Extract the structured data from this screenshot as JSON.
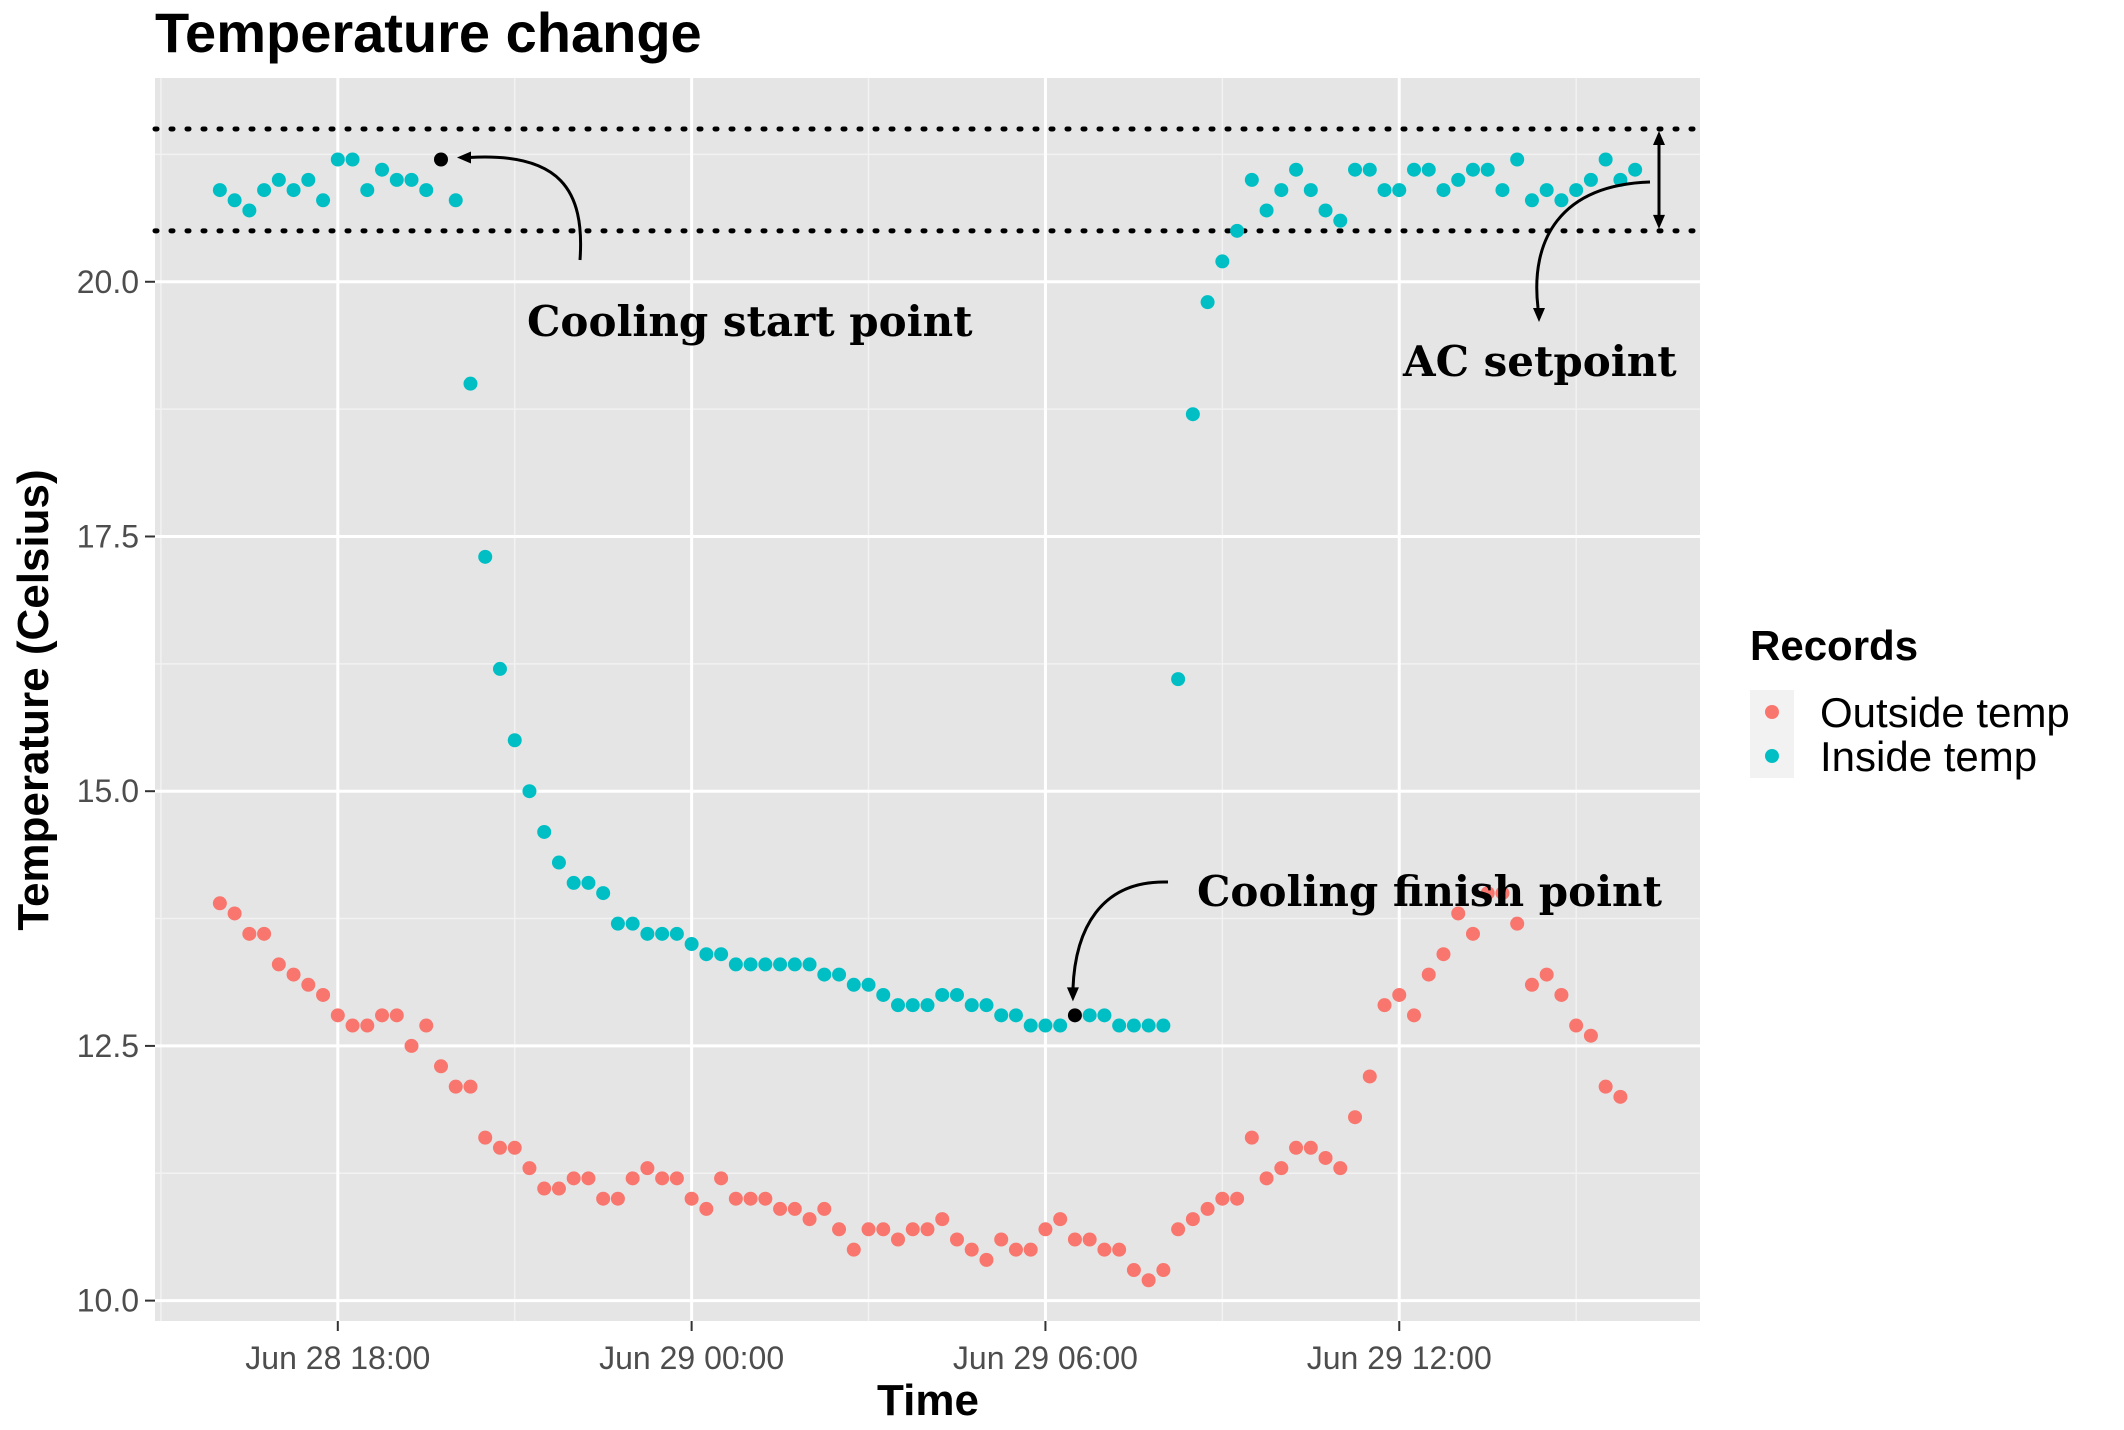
{
  "chart_data": {
    "type": "scatter",
    "title": "Temperature change",
    "xlabel": "Time",
    "ylabel": "Temperature (Celsius)",
    "x_ticks": [
      "Jun 28 18:00",
      "Jun 29 00:00",
      "Jun 29 06:00",
      "Jun 29 12:00"
    ],
    "x_tick_hours": [
      0,
      6,
      12,
      18
    ],
    "x_unit": "hours after Jun 28 18:00",
    "xlim": [
      -3.1,
      23.1
    ],
    "y_ticks": [
      "10.0",
      "12.5",
      "15.0",
      "17.5",
      "20.0"
    ],
    "y_tick_values": [
      10.0,
      12.5,
      15.0,
      17.5,
      20.0
    ],
    "ylim": [
      9.8,
      22.0
    ],
    "grid": true,
    "legend": {
      "title": "Records",
      "position": "right"
    },
    "series": [
      {
        "name": "Outside temp",
        "color": "#f8766d",
        "points": [
          [
            -2.0,
            13.9
          ],
          [
            -1.75,
            13.8
          ],
          [
            -1.5,
            13.6
          ],
          [
            -1.25,
            13.6
          ],
          [
            -1.0,
            13.3
          ],
          [
            -0.75,
            13.2
          ],
          [
            -0.5,
            13.1
          ],
          [
            -0.25,
            13.0
          ],
          [
            0.0,
            12.8
          ],
          [
            0.25,
            12.7
          ],
          [
            0.5,
            12.7
          ],
          [
            0.75,
            12.8
          ],
          [
            1.0,
            12.8
          ],
          [
            1.25,
            12.5
          ],
          [
            1.5,
            12.7
          ],
          [
            1.75,
            12.3
          ],
          [
            2.0,
            12.1
          ],
          [
            2.25,
            12.1
          ],
          [
            2.5,
            11.6
          ],
          [
            2.75,
            11.5
          ],
          [
            3.0,
            11.5
          ],
          [
            3.25,
            11.3
          ],
          [
            3.5,
            11.1
          ],
          [
            3.75,
            11.1
          ],
          [
            4.0,
            11.2
          ],
          [
            4.25,
            11.2
          ],
          [
            4.5,
            11.0
          ],
          [
            4.75,
            11.0
          ],
          [
            5.0,
            11.2
          ],
          [
            5.25,
            11.3
          ],
          [
            5.5,
            11.2
          ],
          [
            5.75,
            11.2
          ],
          [
            6.0,
            11.0
          ],
          [
            6.25,
            10.9
          ],
          [
            6.5,
            11.2
          ],
          [
            6.75,
            11.0
          ],
          [
            7.0,
            11.0
          ],
          [
            7.25,
            11.0
          ],
          [
            7.5,
            10.9
          ],
          [
            7.75,
            10.9
          ],
          [
            8.0,
            10.8
          ],
          [
            8.25,
            10.9
          ],
          [
            8.5,
            10.7
          ],
          [
            8.75,
            10.5
          ],
          [
            9.0,
            10.7
          ],
          [
            9.25,
            10.7
          ],
          [
            9.5,
            10.6
          ],
          [
            9.75,
            10.7
          ],
          [
            10.0,
            10.7
          ],
          [
            10.25,
            10.8
          ],
          [
            10.5,
            10.6
          ],
          [
            10.75,
            10.5
          ],
          [
            11.0,
            10.4
          ],
          [
            11.25,
            10.6
          ],
          [
            11.5,
            10.5
          ],
          [
            11.75,
            10.5
          ],
          [
            12.0,
            10.7
          ],
          [
            12.25,
            10.8
          ],
          [
            12.5,
            10.6
          ],
          [
            12.75,
            10.6
          ],
          [
            13.0,
            10.5
          ],
          [
            13.25,
            10.5
          ],
          [
            13.5,
            10.3
          ],
          [
            13.75,
            10.2
          ],
          [
            14.0,
            10.3
          ],
          [
            14.25,
            10.7
          ],
          [
            14.5,
            10.8
          ],
          [
            14.75,
            10.9
          ],
          [
            15.0,
            11.0
          ],
          [
            15.25,
            11.0
          ],
          [
            15.5,
            11.6
          ],
          [
            15.75,
            11.2
          ],
          [
            16.0,
            11.3
          ],
          [
            16.25,
            11.5
          ],
          [
            16.5,
            11.5
          ],
          [
            16.75,
            11.4
          ],
          [
            17.0,
            11.3
          ],
          [
            17.25,
            11.8
          ],
          [
            17.5,
            12.2
          ],
          [
            17.75,
            12.9
          ],
          [
            18.0,
            13.0
          ],
          [
            18.25,
            12.8
          ],
          [
            18.5,
            13.2
          ],
          [
            18.75,
            13.4
          ],
          [
            19.0,
            13.8
          ],
          [
            19.25,
            13.6
          ],
          [
            19.5,
            14.0
          ],
          [
            19.75,
            14.0
          ],
          [
            20.0,
            13.7
          ],
          [
            20.25,
            13.1
          ],
          [
            20.5,
            13.2
          ],
          [
            20.75,
            13.0
          ],
          [
            21.0,
            12.7
          ],
          [
            21.25,
            12.6
          ],
          [
            21.5,
            12.1
          ],
          [
            21.75,
            12.0
          ]
        ]
      },
      {
        "name": "Inside temp",
        "color": "#00bfc4",
        "points": [
          [
            -2.0,
            20.9
          ],
          [
            -1.75,
            20.8
          ],
          [
            -1.5,
            20.7
          ],
          [
            -1.25,
            20.9
          ],
          [
            -1.0,
            21.0
          ],
          [
            -0.75,
            20.9
          ],
          [
            -0.5,
            21.0
          ],
          [
            -0.25,
            20.8
          ],
          [
            0.0,
            21.2
          ],
          [
            0.25,
            21.2
          ],
          [
            0.5,
            20.9
          ],
          [
            0.75,
            21.1
          ],
          [
            1.0,
            21.0
          ],
          [
            1.25,
            21.0
          ],
          [
            1.5,
            20.9
          ],
          [
            2.0,
            20.8
          ],
          [
            2.25,
            19.0
          ],
          [
            2.5,
            17.3
          ],
          [
            2.75,
            16.2
          ],
          [
            3.0,
            15.5
          ],
          [
            3.25,
            15.0
          ],
          [
            3.5,
            14.6
          ],
          [
            3.75,
            14.3
          ],
          [
            4.0,
            14.1
          ],
          [
            4.25,
            14.1
          ],
          [
            4.5,
            14.0
          ],
          [
            4.75,
            13.7
          ],
          [
            5.0,
            13.7
          ],
          [
            5.25,
            13.6
          ],
          [
            5.5,
            13.6
          ],
          [
            5.75,
            13.6
          ],
          [
            6.0,
            13.5
          ],
          [
            6.25,
            13.4
          ],
          [
            6.5,
            13.4
          ],
          [
            6.75,
            13.3
          ],
          [
            7.0,
            13.3
          ],
          [
            7.25,
            13.3
          ],
          [
            7.5,
            13.3
          ],
          [
            7.75,
            13.3
          ],
          [
            8.0,
            13.3
          ],
          [
            8.25,
            13.2
          ],
          [
            8.5,
            13.2
          ],
          [
            8.75,
            13.1
          ],
          [
            9.0,
            13.1
          ],
          [
            9.25,
            13.0
          ],
          [
            9.5,
            12.9
          ],
          [
            9.75,
            12.9
          ],
          [
            10.0,
            12.9
          ],
          [
            10.25,
            13.0
          ],
          [
            10.5,
            13.0
          ],
          [
            10.75,
            12.9
          ],
          [
            11.0,
            12.9
          ],
          [
            11.25,
            12.8
          ],
          [
            11.5,
            12.8
          ],
          [
            11.75,
            12.7
          ],
          [
            12.0,
            12.7
          ],
          [
            12.25,
            12.7
          ],
          [
            12.75,
            12.8
          ],
          [
            13.0,
            12.8
          ],
          [
            13.25,
            12.7
          ],
          [
            13.5,
            12.7
          ],
          [
            13.75,
            12.7
          ],
          [
            14.0,
            12.7
          ],
          [
            14.25,
            16.1
          ],
          [
            14.5,
            18.7
          ],
          [
            14.75,
            19.8
          ],
          [
            15.0,
            20.2
          ],
          [
            15.25,
            20.5
          ],
          [
            15.5,
            21.0
          ],
          [
            15.75,
            20.7
          ],
          [
            16.0,
            20.9
          ],
          [
            16.25,
            21.1
          ],
          [
            16.5,
            20.9
          ],
          [
            16.75,
            20.7
          ],
          [
            17.0,
            20.6
          ],
          [
            17.25,
            21.1
          ],
          [
            17.5,
            21.1
          ],
          [
            17.75,
            20.9
          ],
          [
            18.0,
            20.9
          ],
          [
            18.25,
            21.1
          ],
          [
            18.5,
            21.1
          ],
          [
            18.75,
            20.9
          ],
          [
            19.0,
            21.0
          ],
          [
            19.25,
            21.1
          ],
          [
            19.5,
            21.1
          ],
          [
            19.75,
            20.9
          ],
          [
            20.0,
            21.2
          ],
          [
            20.25,
            20.8
          ],
          [
            20.5,
            20.9
          ],
          [
            20.75,
            20.8
          ],
          [
            21.0,
            20.9
          ],
          [
            21.25,
            21.0
          ],
          [
            21.5,
            21.2
          ],
          [
            21.75,
            21.0
          ],
          [
            22.0,
            21.1
          ]
        ]
      }
    ],
    "setpoint_lines": [
      20.5,
      21.5
    ],
    "marked_points": [
      {
        "label": "Cooling start point",
        "x": 1.75,
        "y": 21.2
      },
      {
        "label": "Cooling finish point",
        "x": 12.5,
        "y": 12.8
      }
    ],
    "annotations": [
      {
        "text": "Cooling start point"
      },
      {
        "text": "Cooling finish point"
      },
      {
        "text": "AC setpoint"
      }
    ]
  }
}
